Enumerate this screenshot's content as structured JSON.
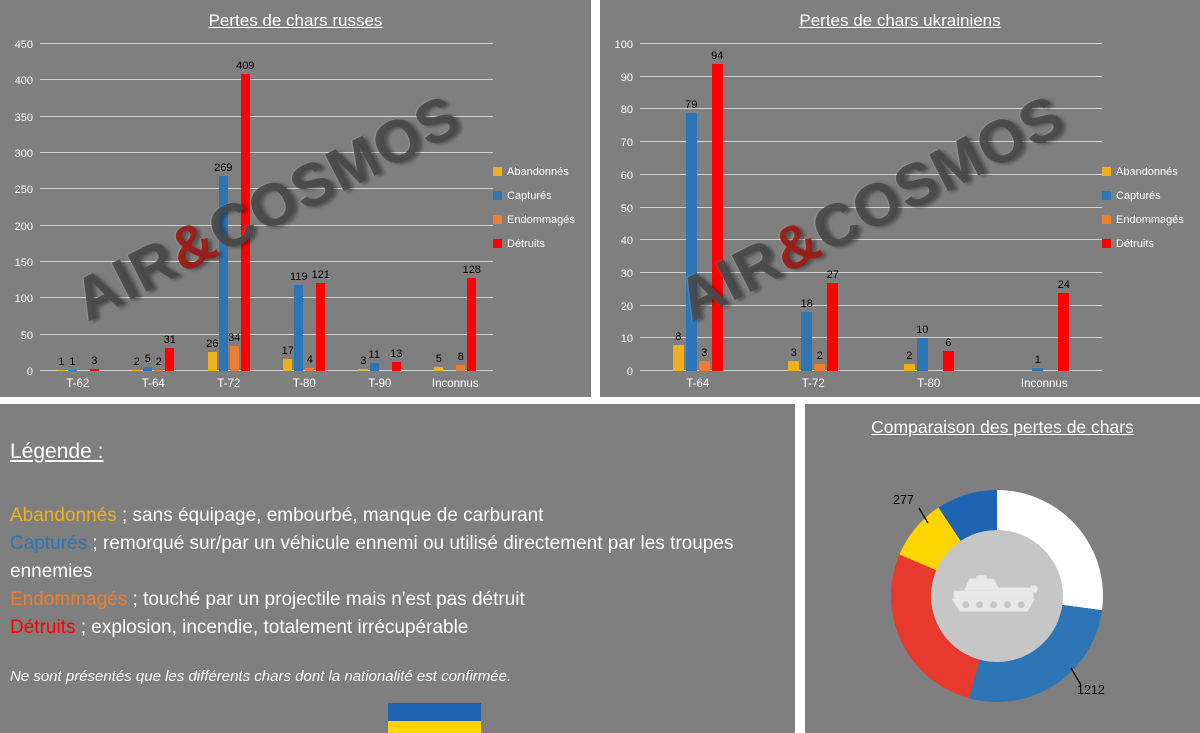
{
  "page": {
    "background": "#ffffff",
    "panel_background": "#7f7f7f"
  },
  "watermark": {
    "part1": "AIR",
    "amp": "&",
    "part2": "COSMOS"
  },
  "colors": {
    "abandonnes": "#EDB01F",
    "captures": "#2E75B6",
    "endommages": "#ED7D31",
    "detruits": "#FE0000",
    "grid": "#EBEBEB",
    "axis_text": "#FFFFFF",
    "data_label_text": "#000000"
  },
  "chart_data": [
    {
      "id": "russian-losses",
      "type": "bar",
      "title": "Pertes de chars russes",
      "categories": [
        "T-62",
        "T-64",
        "T-72",
        "T-80",
        "T-90",
        "Inconnus"
      ],
      "series": [
        {
          "name": "Abandonnés",
          "color": "#EDB01F",
          "values": [
            1,
            2,
            26,
            17,
            3,
            5
          ]
        },
        {
          "name": "Capturés",
          "color": "#2E75B6",
          "values": [
            1,
            5,
            269,
            119,
            11,
            0
          ]
        },
        {
          "name": "Endommagés",
          "color": "#ED7D31",
          "values": [
            0,
            2,
            34,
            4,
            0,
            8
          ]
        },
        {
          "name": "Détruits",
          "color": "#FE0000",
          "values": [
            3,
            31,
            409,
            121,
            13,
            128
          ]
        }
      ],
      "ylim": [
        0,
        450
      ],
      "ystep": 50,
      "grid": true,
      "legend_position": "right"
    },
    {
      "id": "ukrainian-losses",
      "type": "bar",
      "title": "Pertes de chars ukrainiens",
      "categories": [
        "T-64",
        "T-72",
        "T-80",
        "Inconnus"
      ],
      "series": [
        {
          "name": "Abandonnés",
          "color": "#EDB01F",
          "values": [
            8,
            3,
            2,
            0
          ]
        },
        {
          "name": "Capturés",
          "color": "#2E75B6",
          "values": [
            79,
            18,
            10,
            1
          ]
        },
        {
          "name": "Endommagés",
          "color": "#ED7D31",
          "values": [
            3,
            2,
            0,
            0
          ]
        },
        {
          "name": "Détruits",
          "color": "#FE0000",
          "values": [
            94,
            27,
            6,
            24
          ]
        }
      ],
      "ylim": [
        0,
        100
      ],
      "ystep": 10,
      "grid": true,
      "legend_position": "right"
    },
    {
      "id": "comparison",
      "type": "donut",
      "title": "Comparaison des pertes de chars",
      "callouts": [
        {
          "label": "277"
        },
        {
          "label": "1212"
        }
      ],
      "segments": [
        {
          "name": "pertes-russes-blanc",
          "value": 404,
          "color": "#FFFFFF"
        },
        {
          "name": "pertes-russes-bleu",
          "value": 404,
          "color": "#2E75B6"
        },
        {
          "name": "pertes-russes-rouge",
          "value": 404,
          "color": "#E8392E"
        },
        {
          "name": "pertes-ukrainiennes-jaune",
          "value": 138.5,
          "color": "#FFD500"
        },
        {
          "name": "pertes-ukrainiennes-bleu",
          "value": 138.5,
          "color": "#1E63B0"
        }
      ]
    }
  ],
  "legend_panel": {
    "heading": "Légende :",
    "items": [
      {
        "term": "Abandonnés",
        "color": "#EDB01F",
        "desc": " ; sans équipage, embourbé, manque de carburant"
      },
      {
        "term": "Capturés",
        "color": "#2E75B6",
        "desc": " ; remorqué sur/par un véhicule ennemi ou utilisé directement par les troupes ennemies"
      },
      {
        "term": "Endommagés",
        "color": "#ED7D31",
        "desc": " ; touché par un projectile mais n'est pas détruit"
      },
      {
        "term": "Détruits",
        "color": "#FE0000",
        "desc": " ; explosion, incendie, totalement irrécupérable"
      }
    ],
    "note": "Ne sont présentés que les différents chars dont la nationalité est confirmée."
  }
}
